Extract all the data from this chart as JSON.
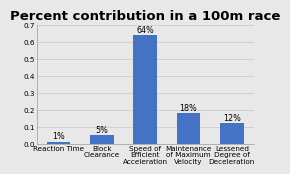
{
  "title": "Percent contribution in a 100m race",
  "categories": [
    "Reaction Time",
    "Block\nClearance",
    "Speed of\nEfficient\nAcceleration",
    "Maintenance\nof Maximum\nVelocity",
    "Lessened\nDegree of\nDeceleration"
  ],
  "values": [
    0.01,
    0.05,
    0.64,
    0.18,
    0.12
  ],
  "labels": [
    "1%",
    "5%",
    "64%",
    "18%",
    "12%"
  ],
  "bar_color": "#4472C4",
  "background_color": "#E8E8E8",
  "ylim": [
    0,
    0.7
  ],
  "yticks": [
    0.0,
    0.1,
    0.2,
    0.3,
    0.4,
    0.5,
    0.6,
    0.7
  ],
  "title_fontsize": 9.5,
  "tick_fontsize": 5.2,
  "label_fontsize": 5.8
}
